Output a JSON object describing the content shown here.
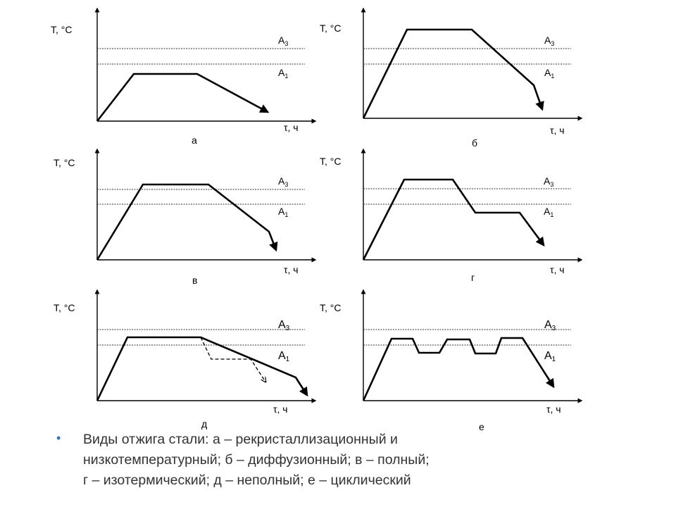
{
  "labels": {
    "y_axis": "T, °C",
    "x_axis": "τ, ч",
    "a3": "A",
    "a3_sub": "3",
    "a1": "A",
    "a1_sub": "1"
  },
  "panels": [
    {
      "id": "a",
      "letter": "а"
    },
    {
      "id": "b",
      "letter": "б"
    },
    {
      "id": "v",
      "letter": "в"
    },
    {
      "id": "g",
      "letter": "г"
    },
    {
      "id": "d",
      "letter": "д"
    },
    {
      "id": "e",
      "letter": "е"
    }
  ],
  "caption": {
    "bullet": "•",
    "lines": [
      "Виды отжига стали: а – рекристаллизационный и",
      "низкотемпературный; б – диффузионный; в – полный;",
      "г – изотермический; д – неполный; е – циклический"
    ]
  }
}
